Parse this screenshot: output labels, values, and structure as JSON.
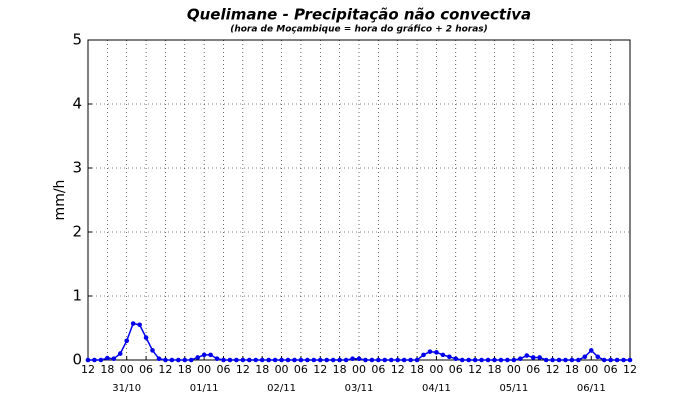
{
  "chart_data": {
    "type": "line",
    "title": "Quelimane - Precipitação não convectiva",
    "subtitle": "(hora de Moçambique = hora do gráfico + 2 horas)",
    "y_label": "mm/h",
    "x": [
      0,
      2,
      4,
      6,
      8,
      10,
      12,
      14,
      16,
      18,
      20,
      22,
      24,
      26,
      28,
      30,
      32,
      34,
      36,
      38,
      40,
      42,
      44,
      46,
      48,
      50,
      52,
      54,
      56,
      58,
      60,
      62,
      64,
      66,
      68,
      70,
      72,
      74,
      76,
      78,
      80,
      82,
      84,
      86,
      88,
      90,
      92,
      94,
      96,
      98,
      100,
      102,
      104,
      106,
      108,
      110,
      112,
      114,
      116,
      118,
      120,
      122,
      124,
      126,
      128,
      130,
      132,
      134,
      136,
      138,
      140,
      142,
      144,
      146,
      148,
      150,
      152,
      154,
      156,
      158,
      160,
      162,
      164,
      166,
      168
    ],
    "series": [
      {
        "color": "#0000ee",
        "values": [
          0,
          0,
          0,
          0.03,
          0.02,
          0.1,
          0.3,
          0.57,
          0.55,
          0.35,
          0.15,
          0.02,
          0,
          0,
          0,
          0,
          0,
          0.04,
          0.08,
          0.08,
          0.02,
          0,
          0,
          0,
          0,
          0,
          0,
          0,
          0,
          0,
          0,
          0,
          0,
          0,
          0,
          0,
          0,
          0,
          0,
          0,
          0,
          0.02,
          0.02,
          0,
          0,
          0,
          0,
          0,
          0,
          0,
          0,
          0,
          0.08,
          0.13,
          0.12,
          0.08,
          0.05,
          0.02,
          0,
          0,
          0,
          0,
          0,
          0,
          0,
          0,
          0,
          0.02,
          0.07,
          0.04,
          0.04,
          0,
          0,
          0,
          0,
          0,
          0,
          0.05,
          0.15,
          0.05,
          0,
          0,
          0,
          0,
          0
        ]
      }
    ],
    "xlim": [
      0,
      168
    ],
    "xticks": [
      {
        "value": 0,
        "label": "12"
      },
      {
        "value": 6,
        "label": "18"
      },
      {
        "value": 12,
        "label": "00"
      },
      {
        "value": 18,
        "label": "06"
      },
      {
        "value": 24,
        "label": "12"
      },
      {
        "value": 30,
        "label": "18"
      },
      {
        "value": 36,
        "label": "00"
      },
      {
        "value": 42,
        "label": "06"
      },
      {
        "value": 48,
        "label": "12"
      },
      {
        "value": 54,
        "label": "18"
      },
      {
        "value": 60,
        "label": "00"
      },
      {
        "value": 66,
        "label": "06"
      },
      {
        "value": 72,
        "label": "12"
      },
      {
        "value": 78,
        "label": "18"
      },
      {
        "value": 84,
        "label": "00"
      },
      {
        "value": 90,
        "label": "06"
      },
      {
        "value": 96,
        "label": "12"
      },
      {
        "value": 102,
        "label": "18"
      },
      {
        "value": 108,
        "label": "00"
      },
      {
        "value": 114,
        "label": "06"
      },
      {
        "value": 120,
        "label": "12"
      },
      {
        "value": 126,
        "label": "18"
      },
      {
        "value": 132,
        "label": "00"
      },
      {
        "value": 138,
        "label": "06"
      },
      {
        "value": 144,
        "label": "12"
      },
      {
        "value": 150,
        "label": "18"
      },
      {
        "value": 156,
        "label": "00"
      },
      {
        "value": 162,
        "label": "06"
      },
      {
        "value": 168,
        "label": "12"
      }
    ],
    "date_ticks": [
      {
        "value": 12,
        "label": "31/10"
      },
      {
        "value": 36,
        "label": "01/11"
      },
      {
        "value": 60,
        "label": "02/11"
      },
      {
        "value": 84,
        "label": "03/11"
      },
      {
        "value": 108,
        "label": "04/11"
      },
      {
        "value": 132,
        "label": "05/11"
      },
      {
        "value": 156,
        "label": "06/11"
      }
    ],
    "ylim": [
      0,
      5
    ],
    "yticks": [
      0,
      1,
      2,
      3,
      4,
      5
    ],
    "grid": true
  }
}
